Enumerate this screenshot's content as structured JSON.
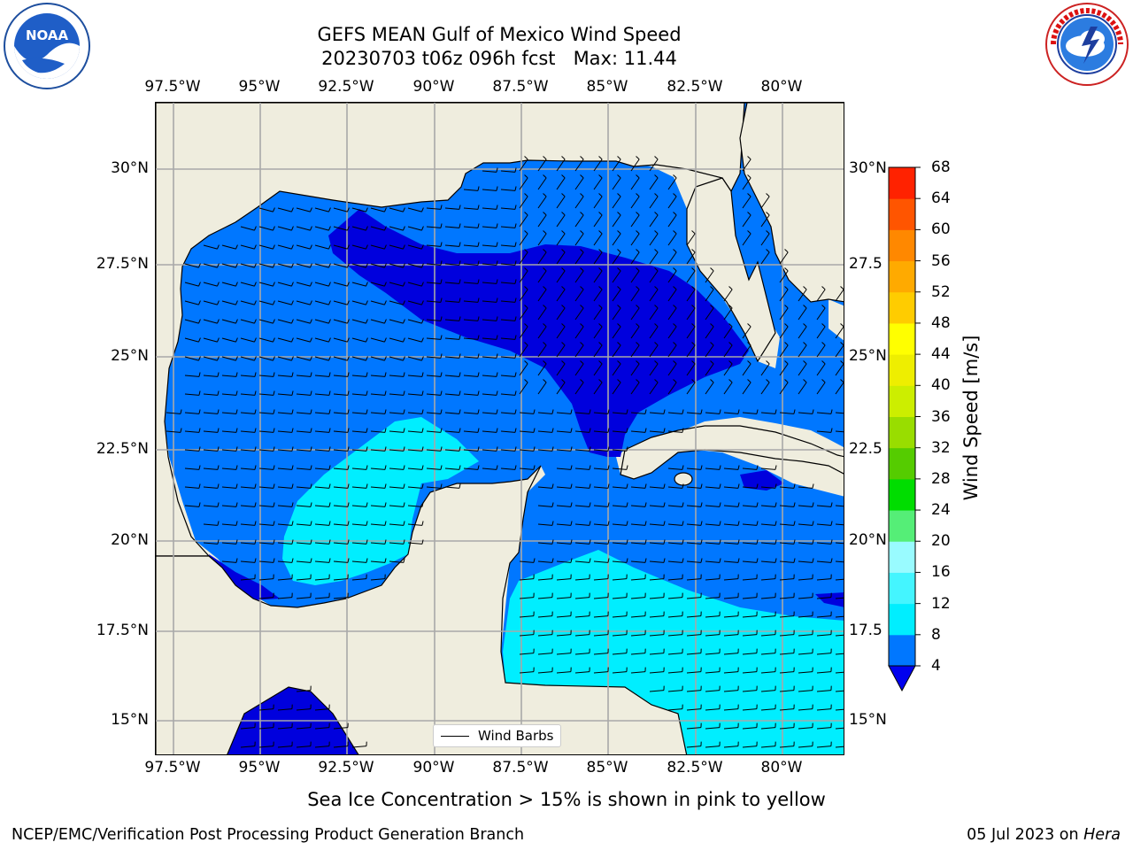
{
  "header": {
    "title_line1": "GEFS MEAN Gulf of Mexico Wind Speed",
    "title_line2": "20230703 t06z 096h fcst   Max: 11.44"
  },
  "logos": {
    "left": {
      "name": "noaa-logo",
      "text_center": "NOAA",
      "ring_text": "NATIONAL OCEANIC AND ATMOSPHERIC ADMINISTRATION · U.S. DEPARTMENT OF COMMERCE"
    },
    "right": {
      "name": "nws-logo",
      "ring_text": "NATIONAL WEATHER SERVICE"
    }
  },
  "map": {
    "lon_labels": [
      "97.5°W",
      "95°W",
      "92.5°W",
      "90°W",
      "87.5°W",
      "85°W",
      "82.5°W",
      "80°W"
    ],
    "lat_labels_left": [
      "30°N",
      "27.5°N",
      "25°N",
      "22.5°N",
      "20°N",
      "17.5°N",
      "15°N"
    ],
    "lat_labels_right": [
      "30°N",
      "27.5",
      "25°N",
      "22.5",
      "20°N",
      "17.5",
      "15°N"
    ],
    "lon_range": [
      -98,
      -78.2
    ],
    "lat_range": [
      14,
      31.8
    ],
    "land_color": "#efedde",
    "grid": true,
    "legend_label": "Wind Barbs"
  },
  "colorbar": {
    "title": "Wind Speed [m/s]",
    "ticks": [
      "68",
      "64",
      "60",
      "56",
      "52",
      "48",
      "44",
      "40",
      "36",
      "32",
      "28",
      "24",
      "20",
      "16",
      "12",
      "8",
      "4"
    ],
    "levels": [
      4,
      8,
      12,
      16,
      20,
      24,
      28,
      32,
      36,
      40,
      44,
      48,
      52,
      56,
      60,
      64,
      68
    ],
    "colors": [
      "#0077ff",
      "#00eeff",
      "#44f5ff",
      "#99fbff",
      "#55ee77",
      "#00dd00",
      "#55cc00",
      "#99dd00",
      "#ccee00",
      "#eeee00",
      "#ffff00",
      "#ffcc00",
      "#ffaa00",
      "#ff8800",
      "#ff5500",
      "#ff2200"
    ],
    "under_color": "#0000ee",
    "extend": "min"
  },
  "fields": {
    "speed_band_colors": {
      "lt4": "#0000dd",
      "4_8": "#0077ff",
      "8_12": "#00eeff"
    }
  },
  "note": "Sea Ice Concentration > 15% is shown in pink to yellow",
  "footer": {
    "left": "NCEP/EMC/Verification Post Processing Product Generation Branch",
    "right_date": "05 Jul 2023 on ",
    "right_machine": "Hera"
  }
}
